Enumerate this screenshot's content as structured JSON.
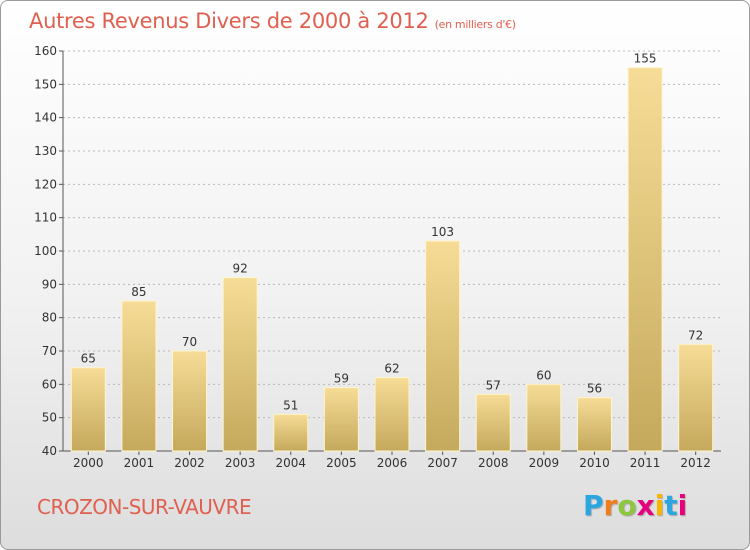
{
  "header": {
    "title": "Autres Revenus Divers de 2000 à 2012",
    "unit": "(en milliers d'€)"
  },
  "footer": {
    "place": "CROZON-SUR-VAUVRE",
    "logo_letters": [
      "P",
      "r",
      "o",
      "x",
      "i",
      "t",
      "i"
    ],
    "logo_colors": [
      "#2aa7e0",
      "#f07d1a",
      "#8ec63f",
      "#e6007e",
      "#f7b500",
      "#2aa7e0",
      "#e6007e"
    ]
  },
  "colors": {
    "title": "#e06050",
    "bar_light": "#f6dc96",
    "bar_dark": "#c4a95c",
    "grid": "#b8b8b8",
    "axis_text": "#333333"
  },
  "chart_data": {
    "type": "bar",
    "categories": [
      "2000",
      "2001",
      "2002",
      "2003",
      "2004",
      "2005",
      "2006",
      "2007",
      "2008",
      "2009",
      "2010",
      "2011",
      "2012"
    ],
    "values": [
      65,
      85,
      70,
      92,
      51,
      59,
      62,
      103,
      57,
      60,
      56,
      155,
      72
    ],
    "data_labels": [
      "65",
      "85",
      "70",
      "92",
      "51",
      "59",
      "62",
      "103",
      "57",
      "60",
      "56",
      "155",
      "72"
    ],
    "y_ticks": [
      "40",
      "50",
      "60",
      "70",
      "80",
      "90",
      "100",
      "110",
      "120",
      "130",
      "140",
      "150",
      "160"
    ],
    "ylim": [
      40,
      160
    ],
    "grid": true,
    "title": "Autres Revenus Divers de 2000 à 2012",
    "xlabel": "",
    "ylabel": ""
  }
}
